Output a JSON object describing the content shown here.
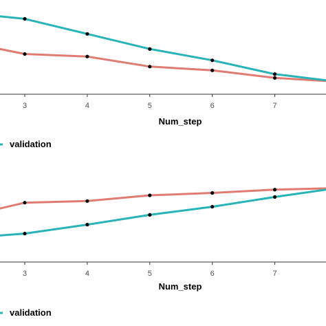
{
  "chart_data": [
    {
      "type": "line",
      "xlabel": "Num_step",
      "x": [
        2,
        3,
        4,
        5,
        6,
        7,
        8
      ],
      "x_ticks": [
        3,
        4,
        5,
        6,
        7
      ],
      "series": [
        {
          "key": "train",
          "color": "#e07b72",
          "values": [
            0.82,
            0.72,
            0.7,
            0.62,
            0.59,
            0.53,
            0.5
          ]
        },
        {
          "key": "validation",
          "name": "validation",
          "color": "#27b3b8",
          "values": [
            1.05,
            1.0,
            0.88,
            0.76,
            0.67,
            0.56,
            0.5
          ]
        }
      ],
      "marker_color": "#000000",
      "legend": {
        "position": "bottom",
        "label": "validation"
      }
    },
    {
      "type": "line",
      "xlabel": "Num_step",
      "x": [
        2,
        3,
        4,
        5,
        6,
        7,
        8
      ],
      "x_ticks": [
        3,
        4,
        5,
        6,
        7
      ],
      "series": [
        {
          "key": "train",
          "color": "#e07b72",
          "values": [
            0.55,
            0.73,
            0.75,
            0.82,
            0.85,
            0.89,
            0.91
          ]
        },
        {
          "key": "validation",
          "name": "validation",
          "color": "#27b3b8",
          "values": [
            0.29,
            0.35,
            0.46,
            0.58,
            0.68,
            0.8,
            0.91
          ]
        }
      ],
      "marker_color": "#000000",
      "legend": {
        "position": "bottom",
        "label": "validation"
      }
    }
  ]
}
